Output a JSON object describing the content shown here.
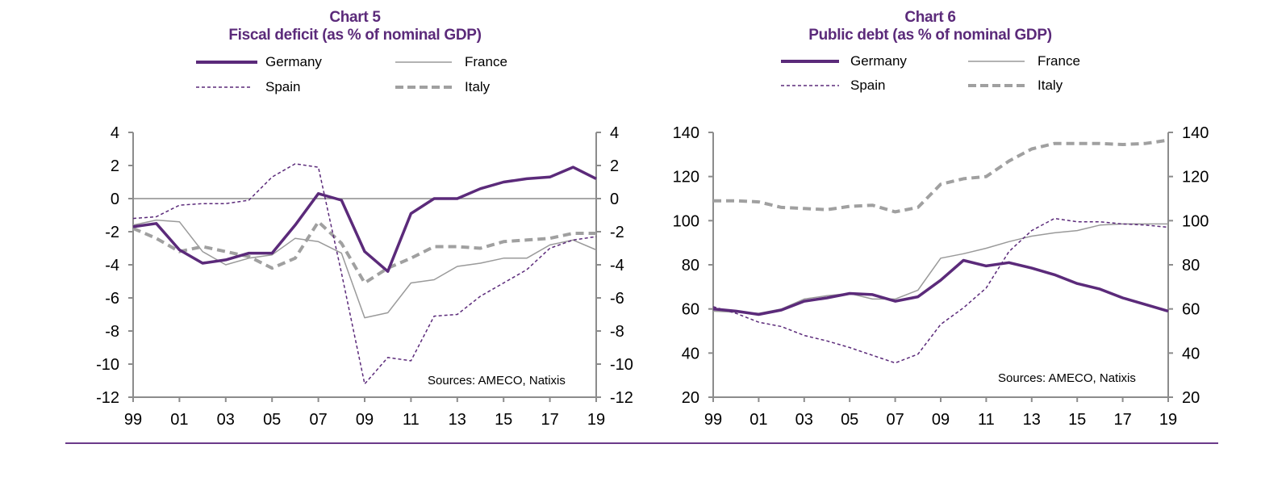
{
  "chart_data": [
    {
      "id": "chart5",
      "type": "line",
      "title": "Chart 5",
      "subtitle": "Fiscal deficit (as % of nominal GDP)",
      "xlabel": "",
      "ylabel": "",
      "x": [
        "99",
        "00",
        "01",
        "02",
        "03",
        "04",
        "05",
        "06",
        "07",
        "08",
        "09",
        "10",
        "11",
        "12",
        "13",
        "14",
        "15",
        "16",
        "17",
        "18",
        "19"
      ],
      "x_tick_labels": [
        "99",
        "01",
        "03",
        "05",
        "07",
        "09",
        "11",
        "13",
        "15",
        "17",
        "19"
      ],
      "ylim": [
        -12,
        4
      ],
      "y_ticks": [
        4,
        2,
        0,
        -2,
        -4,
        -6,
        -8,
        -10,
        -12
      ],
      "secondary_y_axis": true,
      "zero_line": true,
      "grid": false,
      "legend_placement": "top",
      "annotation": "Sources:  AMECO, Natixis",
      "series": [
        {
          "name": "Germany",
          "style": "solid-thick",
          "color": "#5b2a7a",
          "values": [
            -1.7,
            -1.5,
            -3.1,
            -3.9,
            -3.7,
            -3.3,
            -3.3,
            -1.6,
            0.3,
            -0.1,
            -3.2,
            -4.4,
            -0.9,
            0.0,
            0.0,
            0.6,
            1.0,
            1.2,
            1.3,
            1.9,
            1.2
          ]
        },
        {
          "name": "France",
          "style": "solid-thin",
          "color": "#9a9a9a",
          "values": [
            -1.6,
            -1.3,
            -1.4,
            -3.2,
            -4.0,
            -3.6,
            -3.4,
            -2.4,
            -2.6,
            -3.3,
            -7.2,
            -6.9,
            -5.1,
            -4.9,
            -4.1,
            -3.9,
            -3.6,
            -3.6,
            -2.8,
            -2.5,
            -3.1
          ]
        },
        {
          "name": "Spain",
          "style": "dashed-thin",
          "color": "#5b2a7a",
          "values": [
            -1.2,
            -1.1,
            -0.4,
            -0.3,
            -0.3,
            -0.1,
            1.3,
            2.1,
            1.9,
            -4.5,
            -11.2,
            -9.6,
            -9.8,
            -7.1,
            -7.0,
            -5.9,
            -5.1,
            -4.3,
            -3.0,
            -2.5,
            -2.3
          ]
        },
        {
          "name": "Italy",
          "style": "dashed-thick",
          "color": "#a0a0a0",
          "values": [
            -1.8,
            -2.4,
            -3.2,
            -2.9,
            -3.2,
            -3.5,
            -4.2,
            -3.6,
            -1.4,
            -2.7,
            -5.1,
            -4.2,
            -3.6,
            -2.9,
            -2.9,
            -3.0,
            -2.6,
            -2.5,
            -2.4,
            -2.1,
            -2.1
          ]
        }
      ]
    },
    {
      "id": "chart6",
      "type": "line",
      "title": "Chart 6",
      "subtitle": "Public debt (as % of nominal GDP)",
      "xlabel": "",
      "ylabel": "",
      "x": [
        "99",
        "00",
        "01",
        "02",
        "03",
        "04",
        "05",
        "06",
        "07",
        "08",
        "09",
        "10",
        "11",
        "12",
        "13",
        "14",
        "15",
        "16",
        "17",
        "18",
        "19"
      ],
      "x_tick_labels": [
        "99",
        "01",
        "03",
        "05",
        "07",
        "09",
        "11",
        "13",
        "15",
        "17",
        "19"
      ],
      "ylim": [
        20,
        140
      ],
      "y_ticks": [
        140,
        120,
        100,
        80,
        60,
        40,
        20
      ],
      "secondary_y_axis": true,
      "zero_line": false,
      "grid": false,
      "legend_placement": "top",
      "annotation": "Sources:  AMECO, Natixis",
      "series": [
        {
          "name": "Germany",
          "style": "solid-thick",
          "color": "#5b2a7a",
          "values": [
            60,
            59,
            57.5,
            59.5,
            63.5,
            65,
            67,
            66.5,
            63.5,
            65.5,
            73,
            82,
            79.5,
            81,
            78.5,
            75.5,
            71.5,
            69,
            65,
            62,
            59
          ]
        },
        {
          "name": "France",
          "style": "solid-thin",
          "color": "#9a9a9a",
          "values": [
            59,
            58.5,
            58,
            60,
            64.5,
            66,
            67,
            64.5,
            64.5,
            68.5,
            83,
            85,
            87.5,
            90.5,
            93,
            94.5,
            95.5,
            98,
            98.5,
            98.5,
            98.5
          ]
        },
        {
          "name": "Spain",
          "style": "dashed-thin",
          "color": "#5b2a7a",
          "values": [
            61,
            58,
            54,
            52,
            48,
            45.5,
            42.5,
            39,
            35.5,
            39.5,
            53,
            60.5,
            69.5,
            86,
            95.5,
            101,
            99.5,
            99.5,
            98.5,
            98,
            97
          ]
        },
        {
          "name": "Italy",
          "style": "dashed-thick",
          "color": "#a0a0a0",
          "values": [
            109,
            109,
            108.5,
            106,
            105.5,
            105,
            106.5,
            107,
            104,
            106,
            116.5,
            119,
            120,
            127,
            132.5,
            135,
            135,
            135,
            134.5,
            135,
            136.5
          ]
        }
      ]
    }
  ],
  "colors": {
    "title": "#5b2a7a",
    "axis": "#8c8c8c",
    "divider": "#6b3a8a"
  }
}
